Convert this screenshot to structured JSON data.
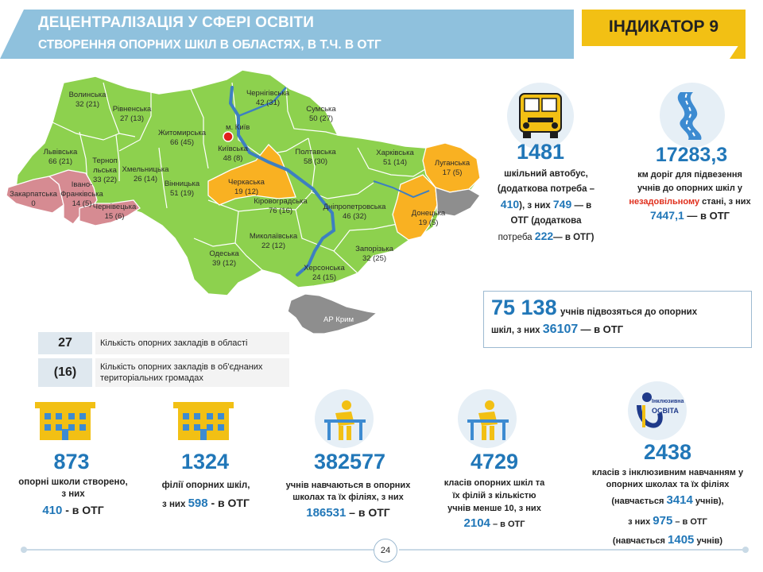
{
  "header": {
    "title": "ДЕЦЕНТРАЛІЗАЦІЯ У СФЕРІ ОСВІТИ",
    "subtitle": "СТВОРЕННЯ ОПОРНИХ ШКІЛ В ОБЛАСТЯХ, В Т.Ч. В ОТГ",
    "indicator": "ІНДИКАТОР 9"
  },
  "colors": {
    "header_bg": "#8fc1dd",
    "indicator_bg": "#f2c014",
    "region_green": "#8dd14e",
    "region_orange": "#f9b122",
    "region_pink": "#d68b92",
    "region_grey": "#8e8e8e",
    "river": "#3d7fc1",
    "accent_blue": "#2177b8"
  },
  "map": {
    "capital": "м. Київ",
    "regions": [
      {
        "name": "Волинська",
        "value": "32 (21)"
      },
      {
        "name": "Рівненська",
        "value": "27 (13)"
      },
      {
        "name": "Житомирська",
        "value": "66 (45)"
      },
      {
        "name": "Чернігівська",
        "value": "42 (31)"
      },
      {
        "name": "Сумська",
        "value": "50 (27)"
      },
      {
        "name": "Київська",
        "value": "48 (8)"
      },
      {
        "name": "Львівська",
        "value": "66 (21)"
      },
      {
        "name": "Терноп­ільська",
        "value": "33 (22)"
      },
      {
        "name": "Хмельницька",
        "value": "26 (14)"
      },
      {
        "name": "Вінницька",
        "value": "51 (19)"
      },
      {
        "name": "Черкаська",
        "value": "19 (12)"
      },
      {
        "name": "Полтавська",
        "value": "58 (30)"
      },
      {
        "name": "Харківська",
        "value": "51 (14)"
      },
      {
        "name": "Луганська",
        "value": "17 (5)"
      },
      {
        "name": "Закарпатська",
        "value": "0"
      },
      {
        "name": "Івано-Франківська",
        "value": "14 (5)"
      },
      {
        "name": "Чернівецька",
        "value": "15 (6)"
      },
      {
        "name": "Кіровоградська",
        "value": "76 (16)"
      },
      {
        "name": "Дніпропетровська",
        "value": "46 (32)"
      },
      {
        "name": "Донецька",
        "value": "19 (5)"
      },
      {
        "name": "Миколаївська",
        "value": "22 (12)"
      },
      {
        "name": "Одеська",
        "value": "39 (12)"
      },
      {
        "name": "Запорізька",
        "value": "32 (25)"
      },
      {
        "name": "Херсонська",
        "value": "24 (15)"
      }
    ],
    "crimea": "АР Крим"
  },
  "legend": [
    {
      "key": "27",
      "text": "Кількість опорних закладів в області"
    },
    {
      "key": "(16)",
      "text": "Кількість опорних закладів в об'єднаних територіальних громадах"
    }
  ],
  "stats_right": {
    "bus_number": "1481",
    "bus_l1": "шкільний автобус,",
    "bus_l2": "(додаткова потреба –",
    "bus_n1": "410",
    "bus_t1": "), з них",
    "bus_n2": "749",
    "bus_t2": " — в",
    "bus_l4": "ОТГ (додаткова",
    "bus_l5a": "потреба",
    "bus_n3": "222",
    "bus_l5b": "— в ОТГ)",
    "road_number": "17283,3",
    "road_l1": "км доріг для підвезення",
    "road_l2": "учнів до опорних шкіл у",
    "road_bad": "незадовільному",
    "road_l3b": " стані, з них",
    "road_n": "7447,1",
    "road_l4": " — в ОТГ",
    "pupils_number": "75 138",
    "pupils_l1": "учнів підвозяться до опорних",
    "pupils_l2a": "шкіл, з них",
    "pupils_n": "36107",
    "pupils_l2b": "— в ОТГ"
  },
  "stats_bottom": [
    {
      "number": "873",
      "l1": "опорні школи створено,",
      "l2": "з них",
      "n": "410",
      "l3": " -  в ОТГ"
    },
    {
      "number": "1324",
      "l1": "філії опорних шкіл,",
      "l2": "з них",
      "n": "598",
      "l3": " -  в ОТГ"
    },
    {
      "number": "382577",
      "l1": "учнів навчаються  в опорних",
      "l2": "школах та їх філіях, з них",
      "n": "186531",
      "l3": " – в ОТГ"
    },
    {
      "number": "4729",
      "l1": "класів опорних шкіл та",
      "l2": "їх філій з кількістю",
      "l3a": "учнів менше 10, з них",
      "n": "2104",
      "l3": " – в ОТГ"
    },
    {
      "number": "2438",
      "l1": "класів з інклюзивним навчанням у",
      "l2": "опорних школах та їх філіях",
      "l3a": "(навчається",
      "n1": "3414",
      "l3b": " учнів),",
      "l4a": "з них",
      "n2": "975",
      "l4b": " – в ОТГ",
      "l5a": "(навчається",
      "n3": "1405",
      "l5b": " учнів)"
    }
  ],
  "logo": {
    "line1": "Інклюзивна",
    "line2": "ОСВІТА"
  },
  "page_number": "24"
}
